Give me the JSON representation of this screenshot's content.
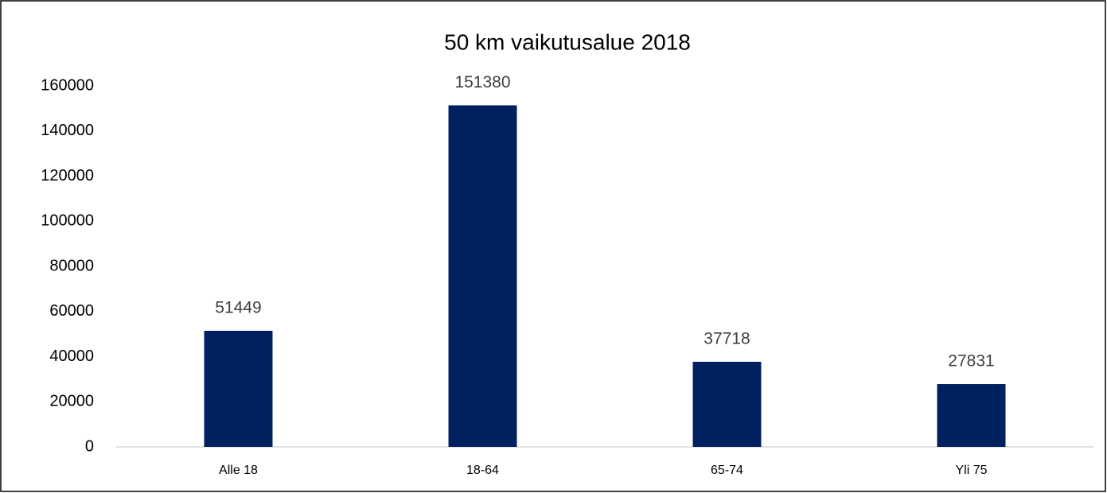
{
  "chart_data": {
    "type": "bar",
    "title": "50 km vaikutusalue 2018",
    "categories": [
      "Alle 18",
      "18-64",
      "65-74",
      "Yli 75"
    ],
    "values": [
      51449,
      151380,
      37718,
      27831
    ],
    "color": "#002060",
    "ylim": [
      0,
      160000
    ],
    "yticks": [
      0,
      20000,
      40000,
      60000,
      80000,
      100000,
      120000,
      140000,
      160000
    ],
    "grid": false
  }
}
